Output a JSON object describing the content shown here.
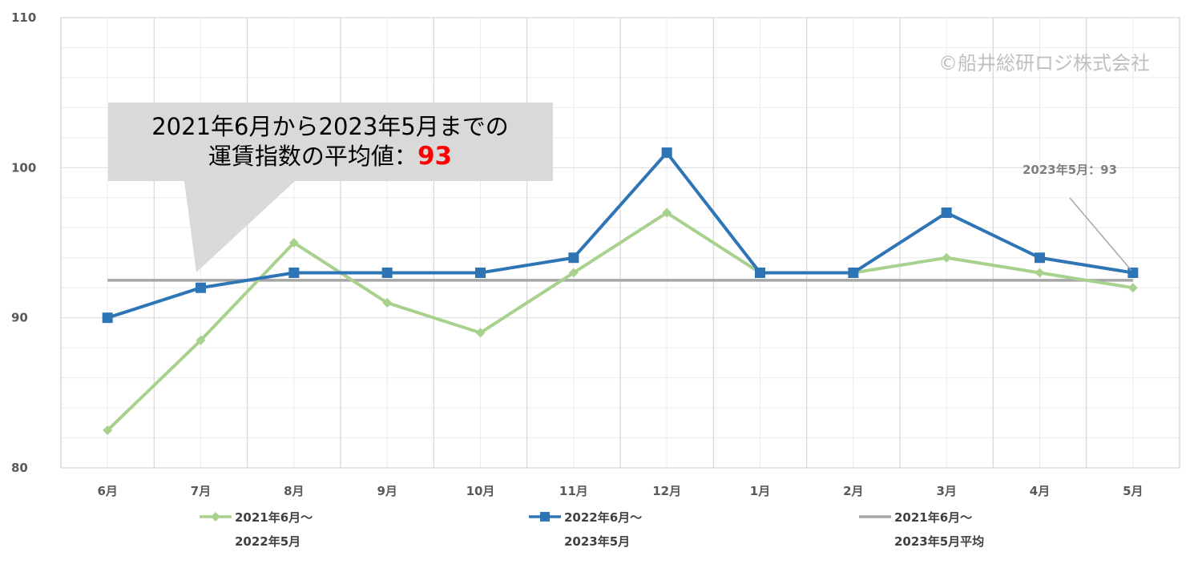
{
  "colors": {
    "series_2021": "#a9d18e",
    "series_2022": "#2e75b6",
    "series_avg": "#a6a6a6",
    "callout_bg": "#d9d9d9",
    "highlight": "#ff0000",
    "grid_major": "#d9d9d9",
    "grid_minor": "#ebebeb"
  },
  "watermark": "©船井総研ロジ株式会社",
  "callout": {
    "line1": "2021年6月から2023年5月までの",
    "line2_prefix": "運賃指数の平均値：",
    "line2_value": "93"
  },
  "latest_label": "2023年5月：93",
  "legend": [
    {
      "line1": "2021年6月～",
      "line2": "2022年5月",
      "marker": "diamond"
    },
    {
      "line1": "2022年6月～",
      "line2": "2023年5月",
      "marker": "square"
    },
    {
      "line1": "2021年6月～",
      "line2": "2023年5月平均",
      "marker": "none"
    }
  ],
  "chart_data": {
    "type": "line",
    "categories": [
      "6月",
      "7月",
      "8月",
      "9月",
      "10月",
      "11月",
      "12月",
      "1月",
      "2月",
      "3月",
      "4月",
      "5月"
    ],
    "ylim": [
      80,
      110
    ],
    "yticks": [
      80,
      90,
      100,
      110
    ],
    "grid": true,
    "legend_position": "bottom",
    "series": [
      {
        "name": "2021年6月～2022年5月",
        "marker": "diamond",
        "values": [
          82.5,
          88.5,
          95,
          91,
          89,
          93,
          97,
          93,
          93,
          94,
          93,
          92
        ]
      },
      {
        "name": "2022年6月～2023年5月",
        "marker": "square",
        "values": [
          90,
          92,
          93,
          93,
          93,
          94,
          101,
          93,
          93,
          97,
          94,
          93
        ]
      },
      {
        "name": "2021年6月～2023年5月平均",
        "marker": "none",
        "values": [
          92.5,
          92.5,
          92.5,
          92.5,
          92.5,
          92.5,
          92.5,
          92.5,
          92.5,
          92.5,
          92.5,
          92.5
        ]
      }
    ]
  }
}
